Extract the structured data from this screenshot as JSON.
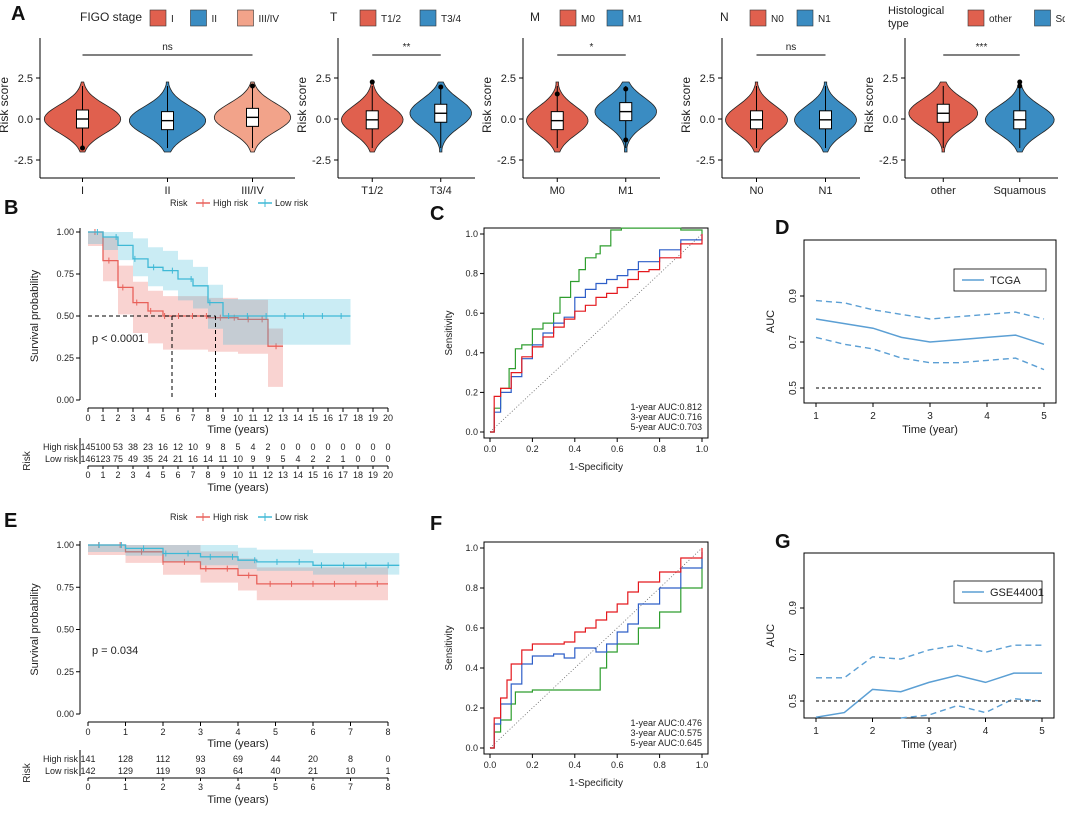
{
  "colors": {
    "red": "#E0604E",
    "blue": "#3A8CC2",
    "salmon": "#F2A38A",
    "km_red": "#E8615A",
    "km_blue": "#3FB9D6",
    "roc_green": "#2F9E2F",
    "roc_blue": "#2F5FC8",
    "roc_red": "#E4191E",
    "auc_line": "#5B9FD4"
  },
  "panel_A": {
    "letter": "A",
    "ylabel": "Risk score",
    "yticks": [
      "2.5",
      "0.0",
      "-2.5"
    ],
    "groups": [
      {
        "legend_title": "FIGO stage",
        "legend": [
          "I",
          "II",
          "III/IV"
        ],
        "xticks": [
          "I",
          "II",
          "III/IV"
        ],
        "sig": "ns",
        "y_med": [
          0.0,
          -0.1,
          0.1
        ]
      },
      {
        "legend_title": "T",
        "legend": [
          "T1/2",
          "T3/4"
        ],
        "xticks": [
          "T1/2",
          "T3/4"
        ],
        "sig": "**",
        "y_med": [
          -0.05,
          0.35
        ]
      },
      {
        "legend_title": "M",
        "legend": [
          "M0",
          "M1"
        ],
        "xticks": [
          "M0",
          "M1"
        ],
        "sig": "*",
        "y_med": [
          -0.1,
          0.45
        ]
      },
      {
        "legend_title": "N",
        "legend": [
          "N0",
          "N1"
        ],
        "xticks": [
          "N0",
          "N1"
        ],
        "sig": "ns",
        "y_med": [
          -0.05,
          -0.05
        ]
      },
      {
        "legend_title": "Histological type",
        "legend_title2": "type",
        "legend_title1": "Histological",
        "legend": [
          "other",
          "Squamous"
        ],
        "xticks": [
          "other",
          "Squamous"
        ],
        "sig": "***",
        "y_med": [
          0.35,
          -0.05
        ]
      }
    ]
  },
  "panel_B": {
    "letter": "B",
    "legend_title": "Risk",
    "legend": [
      "High risk",
      "Low risk"
    ],
    "ylabel": "Survival probability",
    "xlabel": "Time (years)",
    "yticks": [
      "1.00",
      "0.75",
      "0.50",
      "0.25",
      "0.00"
    ],
    "xticks": [
      "0",
      "1",
      "2",
      "3",
      "4",
      "5",
      "6",
      "7",
      "8",
      "9",
      "10",
      "11",
      "12",
      "13",
      "14",
      "15",
      "16",
      "17",
      "18",
      "19",
      "20"
    ],
    "pvalue": "p < 0.0001",
    "risk_label": "Risk",
    "risk_rows": [
      {
        "name": "High risk",
        "values": [
          "145",
          "100",
          "53",
          "38",
          "23",
          "16",
          "12",
          "10",
          "9",
          "8",
          "5",
          "4",
          "2",
          "0",
          "0",
          "0",
          "0",
          "0",
          "0",
          "0",
          "0"
        ]
      },
      {
        "name": "Low risk",
        "values": [
          "146",
          "123",
          "75",
          "49",
          "35",
          "24",
          "21",
          "16",
          "14",
          "11",
          "10",
          "9",
          "9",
          "5",
          "4",
          "2",
          "2",
          "1",
          "0",
          "0",
          "0"
        ]
      }
    ],
    "chart_data": {
      "type": "line",
      "x": [
        0,
        1,
        2,
        3,
        4,
        5,
        6,
        7,
        8,
        9,
        10,
        11,
        12,
        13,
        17.5
      ],
      "series": [
        {
          "name": "High risk",
          "values": [
            1.0,
            0.83,
            0.67,
            0.58,
            0.53,
            0.5,
            0.5,
            0.5,
            0.49,
            0.49,
            0.48,
            0.48,
            0.32,
            0.32,
            null
          ]
        },
        {
          "name": "Low risk",
          "values": [
            1.0,
            0.97,
            0.92,
            0.84,
            0.79,
            0.77,
            0.72,
            0.68,
            0.58,
            0.5,
            0.5,
            0.5,
            0.5,
            0.5,
            0.5
          ]
        }
      ]
    }
  },
  "panel_C": {
    "letter": "C",
    "xlabel": "1-Specificity",
    "ylabel": "Sensitivity",
    "ticks": [
      "0.0",
      "0.2",
      "0.4",
      "0.6",
      "0.8",
      "1.0"
    ],
    "legend": [
      "1-year AUC:0.812",
      "3-year AUC:0.716",
      "5-year AUC:0.703"
    ],
    "chart_data": {
      "type": "line",
      "series": [
        {
          "name": "1-year",
          "x": [
            0,
            0.02,
            0.05,
            0.09,
            0.12,
            0.15,
            0.2,
            0.25,
            0.3,
            0.33,
            0.38,
            0.42,
            0.45,
            0.5,
            0.52,
            0.57,
            0.62,
            0.7,
            0.8,
            0.9,
            1.0
          ],
          "y": [
            0,
            0.12,
            0.22,
            0.32,
            0.42,
            0.44,
            0.52,
            0.55,
            0.6,
            0.68,
            0.76,
            0.82,
            0.88,
            0.9,
            0.94,
            1.02,
            1.03,
            1.03,
            1.03,
            1.02,
            1.0
          ]
        },
        {
          "name": "3-year",
          "x": [
            0,
            0.02,
            0.05,
            0.1,
            0.15,
            0.2,
            0.25,
            0.3,
            0.35,
            0.4,
            0.45,
            0.5,
            0.55,
            0.6,
            0.65,
            0.7,
            0.8,
            0.9,
            1.0
          ],
          "y": [
            0,
            0.1,
            0.2,
            0.28,
            0.37,
            0.44,
            0.5,
            0.55,
            0.58,
            0.68,
            0.72,
            0.75,
            0.77,
            0.79,
            0.82,
            0.86,
            0.92,
            0.97,
            1.0
          ]
        },
        {
          "name": "5-year",
          "x": [
            0,
            0.02,
            0.05,
            0.1,
            0.15,
            0.2,
            0.25,
            0.3,
            0.35,
            0.4,
            0.45,
            0.5,
            0.55,
            0.6,
            0.65,
            0.7,
            0.75,
            0.8,
            0.9,
            1.0
          ],
          "y": [
            0,
            0.18,
            0.22,
            0.3,
            0.38,
            0.43,
            0.48,
            0.53,
            0.57,
            0.61,
            0.64,
            0.68,
            0.7,
            0.73,
            0.77,
            0.81,
            0.82,
            0.88,
            0.95,
            1.0
          ]
        }
      ]
    }
  },
  "panel_D": {
    "letter": "D",
    "xlabel": "Time (year)",
    "ylabel": "AUC",
    "legend": "TCGA",
    "xticks": [
      "1",
      "2",
      "3",
      "4",
      "5"
    ],
    "yticks": [
      "0.5",
      "0.7",
      "0.9"
    ],
    "chart_data": {
      "type": "line",
      "x": [
        1,
        1.5,
        2,
        2.5,
        3,
        3.5,
        4,
        4.5,
        5
      ],
      "series": [
        {
          "name": "AUC",
          "values": [
            0.8,
            0.78,
            0.76,
            0.72,
            0.7,
            0.71,
            0.72,
            0.73,
            0.69
          ]
        },
        {
          "name": "upper",
          "values": [
            0.88,
            0.87,
            0.84,
            0.82,
            0.8,
            0.81,
            0.82,
            0.83,
            0.8
          ]
        },
        {
          "name": "lower",
          "values": [
            0.72,
            0.69,
            0.67,
            0.63,
            0.61,
            0.61,
            0.62,
            0.63,
            0.58
          ]
        },
        {
          "name": "reference",
          "values": [
            0.5,
            0.5,
            0.5,
            0.5,
            0.5,
            0.5,
            0.5,
            0.5,
            0.5
          ]
        }
      ]
    }
  },
  "panel_E": {
    "letter": "E",
    "legend_title": "Risk",
    "legend": [
      "High risk",
      "Low risk"
    ],
    "ylabel": "Survival probability",
    "xlabel": "Time (years)",
    "yticks": [
      "1.00",
      "0.75",
      "0.50",
      "0.25",
      "0.00"
    ],
    "xticks": [
      "0",
      "1",
      "2",
      "3",
      "4",
      "5",
      "6",
      "7",
      "8"
    ],
    "pvalue": "p = 0.034",
    "risk_label": "Risk",
    "risk_rows": [
      {
        "name": "High risk",
        "values": [
          "141",
          "128",
          "112",
          "93",
          "69",
          "44",
          "20",
          "8",
          "0"
        ]
      },
      {
        "name": "Low risk",
        "values": [
          "142",
          "129",
          "119",
          "93",
          "64",
          "40",
          "21",
          "10",
          "1"
        ]
      }
    ],
    "chart_data": {
      "type": "line",
      "x": [
        0,
        1,
        2,
        3,
        4,
        4.5,
        5,
        6,
        7,
        8,
        8.3
      ],
      "series": [
        {
          "name": "High risk",
          "values": [
            1.0,
            0.96,
            0.9,
            0.86,
            0.82,
            0.77,
            0.77,
            0.77,
            0.77,
            0.77,
            null
          ]
        },
        {
          "name": "Low risk",
          "values": [
            1.0,
            0.98,
            0.95,
            0.93,
            0.91,
            0.9,
            0.9,
            0.88,
            0.88,
            0.88,
            0.88
          ]
        }
      ]
    }
  },
  "panel_F": {
    "letter": "F",
    "xlabel": "1-Specificity",
    "ylabel": "Sensitivity",
    "ticks": [
      "0.0",
      "0.2",
      "0.4",
      "0.6",
      "0.8",
      "1.0"
    ],
    "legend": [
      "1-year AUC:0.476",
      "3-year AUC:0.575",
      "5-year AUC:0.645"
    ],
    "chart_data": {
      "type": "line",
      "series": [
        {
          "name": "1-year",
          "x": [
            0,
            0.02,
            0.05,
            0.1,
            0.12,
            0.2,
            0.3,
            0.4,
            0.5,
            0.52,
            0.55,
            0.6,
            0.7,
            0.8,
            0.9,
            1.0
          ],
          "y": [
            0,
            0.08,
            0.14,
            0.22,
            0.28,
            0.29,
            0.29,
            0.29,
            0.29,
            0.4,
            0.48,
            0.52,
            0.6,
            0.68,
            0.8,
            0.95
          ]
        },
        {
          "name": "3-year",
          "x": [
            0,
            0.02,
            0.05,
            0.1,
            0.15,
            0.2,
            0.3,
            0.35,
            0.4,
            0.5,
            0.55,
            0.6,
            0.65,
            0.7,
            0.8,
            0.9,
            1.0
          ],
          "y": [
            0,
            0.12,
            0.22,
            0.32,
            0.42,
            0.46,
            0.47,
            0.45,
            0.5,
            0.48,
            0.52,
            0.58,
            0.62,
            0.72,
            0.8,
            0.9,
            0.98
          ]
        },
        {
          "name": "5-year",
          "x": [
            0,
            0.02,
            0.05,
            0.08,
            0.1,
            0.15,
            0.2,
            0.3,
            0.35,
            0.4,
            0.45,
            0.5,
            0.55,
            0.6,
            0.65,
            0.7,
            0.8,
            0.9,
            1.0
          ],
          "y": [
            0,
            0.15,
            0.25,
            0.34,
            0.42,
            0.49,
            0.52,
            0.52,
            0.53,
            0.58,
            0.6,
            0.64,
            0.68,
            0.72,
            0.78,
            0.83,
            0.88,
            0.95,
            1.0
          ]
        }
      ]
    }
  },
  "panel_G": {
    "letter": "G",
    "xlabel": "Time (year)",
    "ylabel": "AUC",
    "legend": "GSE44001",
    "xticks": [
      "1",
      "2",
      "3",
      "4",
      "5"
    ],
    "yticks": [
      "0.5",
      "0.7",
      "0.9"
    ],
    "chart_data": {
      "type": "line",
      "x": [
        1,
        1.5,
        2,
        2.5,
        3,
        3.5,
        4,
        4.5,
        5
      ],
      "series": [
        {
          "name": "AUC",
          "values": [
            0.43,
            0.45,
            0.55,
            0.54,
            0.58,
            0.61,
            0.58,
            0.62,
            0.62
          ]
        },
        {
          "name": "upper",
          "values": [
            0.6,
            0.6,
            0.69,
            0.68,
            0.72,
            0.74,
            0.71,
            0.74,
            0.74
          ]
        },
        {
          "name": "lower",
          "values": [
            null,
            null,
            null,
            0.35,
            0.44,
            0.48,
            0.45,
            0.51,
            0.5
          ]
        },
        {
          "name": "reference",
          "values": [
            0.5,
            0.5,
            0.5,
            0.5,
            0.5,
            0.5,
            0.5,
            0.5,
            0.5
          ]
        }
      ]
    }
  }
}
